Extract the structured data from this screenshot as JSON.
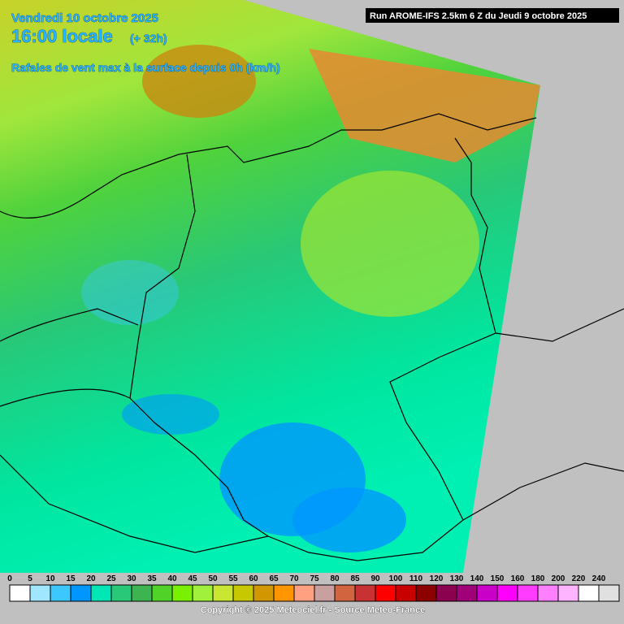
{
  "header": {
    "date": "Vendredi 10 octobre 2025",
    "time": "16:00 locale",
    "offset": "(+ 32h)",
    "parameter": "Rafales de vent max à la surface depuis 0h (km/h)",
    "run": "Run AROME-IFS 2.5km 6 Z du Jeudi 9 octobre 2025"
  },
  "legend": {
    "items": [
      {
        "label": 0,
        "color": "#ffffff"
      },
      {
        "label": 5,
        "color": "#a0e6ff"
      },
      {
        "label": 10,
        "color": "#3cc8ff"
      },
      {
        "label": 15,
        "color": "#0096ff"
      },
      {
        "label": 20,
        "color": "#00e6b4"
      },
      {
        "label": 25,
        "color": "#28c878"
      },
      {
        "label": 30,
        "color": "#3cb450"
      },
      {
        "label": 35,
        "color": "#50d228"
      },
      {
        "label": 40,
        "color": "#78f000"
      },
      {
        "label": 45,
        "color": "#a0f03c"
      },
      {
        "label": 50,
        "color": "#c8e632"
      },
      {
        "label": 55,
        "color": "#c8c800"
      },
      {
        "label": 60,
        "color": "#d29600"
      },
      {
        "label": 65,
        "color": "#ff9600"
      },
      {
        "label": 70,
        "color": "#ffa080"
      },
      {
        "label": 75,
        "color": "#c8a0a0"
      },
      {
        "label": 80,
        "color": "#d26440"
      },
      {
        "label": 85,
        "color": "#c83232"
      },
      {
        "label": 90,
        "color": "#ff0000"
      },
      {
        "label": 100,
        "color": "#c80000"
      },
      {
        "label": 110,
        "color": "#8c0000"
      },
      {
        "label": 120,
        "color": "#8c0050"
      },
      {
        "label": 130,
        "color": "#a00078"
      },
      {
        "label": 140,
        "color": "#c800c8"
      },
      {
        "label": 150,
        "color": "#ff00ff"
      },
      {
        "label": 160,
        "color": "#ff3cff"
      },
      {
        "label": 180,
        "color": "#ff80ff"
      },
      {
        "label": 200,
        "color": "#ffb4ff"
      },
      {
        "label": 220,
        "color": "#ffffff"
      },
      {
        "label": 240,
        "color": "#e0e0e0"
      }
    ]
  },
  "footer": {
    "copyright": "Copyright © 2025 Meteociel.fr - Source Meteo-France"
  }
}
